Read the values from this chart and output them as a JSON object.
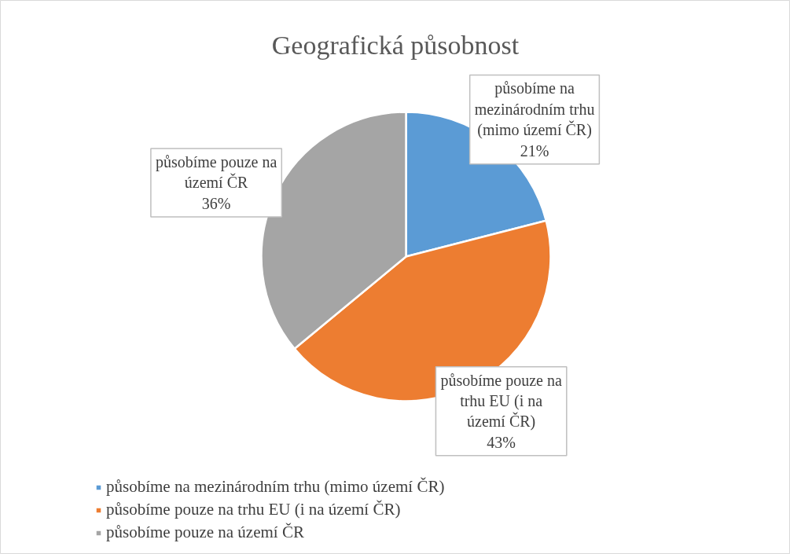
{
  "chart_data": {
    "type": "pie",
    "title": "Geografická působnost",
    "categories": [
      "působíme na mezinárodním trhu (mimo území ČR)",
      "působíme pouze na trhu EU (i na území ČR)",
      "působíme pouze na území ČR"
    ],
    "values": [
      21,
      43,
      36
    ],
    "colors": [
      "#5b9bd5",
      "#ed7d31",
      "#a5a5a5"
    ],
    "value_labels": [
      "21%",
      "43%",
      "36%"
    ],
    "legend": "bottom left"
  }
}
